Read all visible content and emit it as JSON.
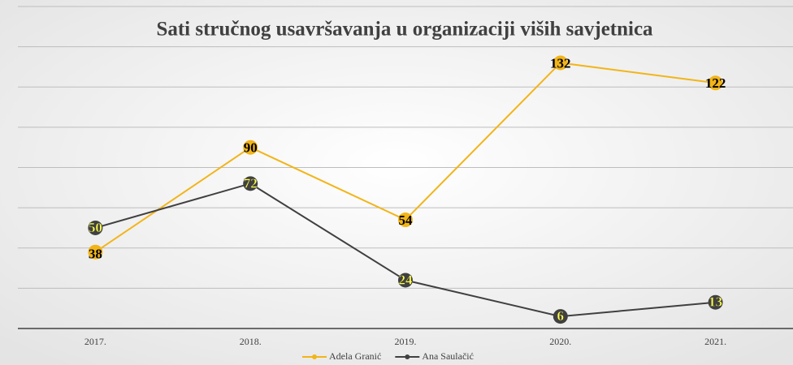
{
  "chart_data": {
    "type": "line",
    "title": "Sati stručnog usavršavanja u organizaciji viših savjetnica",
    "categories": [
      "2017.",
      "2018.",
      "2019.",
      "2020.",
      "2021."
    ],
    "series": [
      {
        "name": "Adela Granić",
        "color": "#f2b519",
        "values": [
          38,
          90,
          54,
          132,
          122
        ]
      },
      {
        "name": "Ana Saulačić",
        "color": "#404040",
        "values": [
          50,
          72,
          24,
          6,
          13
        ]
      }
    ],
    "ylim": [
      0,
      160
    ],
    "yticks": [
      0,
      20,
      40,
      60,
      80,
      100,
      120,
      140,
      160
    ],
    "grid": true,
    "legend": "bottom"
  }
}
